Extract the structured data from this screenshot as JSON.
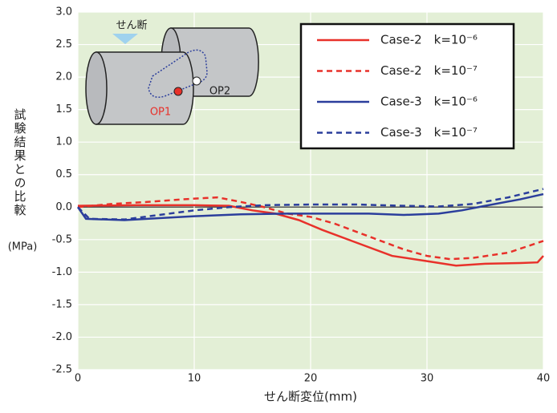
{
  "chart_data": {
    "type": "line",
    "xlabel": "せん断変位(mm)",
    "ylabel": "試験結果との比較",
    "ylabel_unit": "(MPa)",
    "annotations": [
      "せん断",
      "OP1",
      "OP2"
    ],
    "xlim": [
      0,
      40
    ],
    "xticks": [
      0,
      10,
      20,
      30,
      40
    ],
    "ylim": [
      -2.5,
      3.0
    ],
    "yticks": [
      {
        "value": -2.5,
        "label": "-2.5"
      },
      {
        "value": -2.0,
        "label": "-2.0"
      },
      -1.5,
      {
        "value": -1.0,
        "label": "-1.0"
      },
      -0.5,
      {
        "value": 0,
        "label": "0.0"
      },
      0.5,
      {
        "value": 1.0,
        "label": "1.0"
      },
      1.5,
      {
        "value": 2.0,
        "label": "2.0"
      },
      2.5,
      {
        "value": 3.0,
        "label": "3.0"
      }
    ],
    "grid": true,
    "background": "#e3efd6",
    "series": [
      {
        "name": "Case-2　k=10⁻⁶",
        "color": "#e8312a",
        "dashed": false,
        "x": [
          0,
          5,
          10,
          13,
          15,
          17,
          19,
          21,
          24,
          27,
          30,
          32.5,
          35,
          38,
          39.5,
          40
        ],
        "values": [
          0.02,
          0.03,
          0.03,
          0.02,
          -0.05,
          -0.1,
          -0.2,
          -0.35,
          -0.55,
          -0.75,
          -0.83,
          -0.9,
          -0.87,
          -0.86,
          -0.85,
          -0.75
        ]
      },
      {
        "name": "Case-2　k=10⁻⁷",
        "color": "#e8312a",
        "dashed": true,
        "x": [
          0,
          3,
          6,
          9,
          12,
          14,
          16,
          18,
          20,
          22,
          25,
          28,
          30,
          32,
          34,
          37,
          40
        ],
        "values": [
          0.0,
          0.05,
          0.08,
          0.12,
          0.15,
          0.08,
          0.0,
          -0.1,
          -0.15,
          -0.25,
          -0.45,
          -0.65,
          -0.75,
          -0.8,
          -0.78,
          -0.7,
          -0.52
        ]
      },
      {
        "name": "Case-3　k=10⁻⁶",
        "color": "#2b3e9c",
        "dashed": false,
        "x": [
          0,
          0.7,
          4,
          7,
          10,
          14,
          18,
          22,
          25,
          28,
          31,
          33,
          35,
          38,
          40
        ],
        "values": [
          0.0,
          -0.18,
          -0.2,
          -0.17,
          -0.14,
          -0.11,
          -0.1,
          -0.1,
          -0.1,
          -0.12,
          -0.1,
          -0.05,
          0.02,
          0.12,
          0.2
        ]
      },
      {
        "name": "Case-3　k=10⁻⁷",
        "color": "#2b3e9c",
        "dashed": true,
        "x": [
          0,
          1,
          4,
          7,
          10,
          13,
          16,
          20,
          24,
          28,
          31,
          34,
          37,
          40
        ],
        "values": [
          0.0,
          -0.18,
          -0.19,
          -0.12,
          -0.05,
          0.0,
          0.03,
          0.04,
          0.04,
          0.02,
          0.01,
          0.05,
          0.15,
          0.28
        ]
      }
    ]
  }
}
